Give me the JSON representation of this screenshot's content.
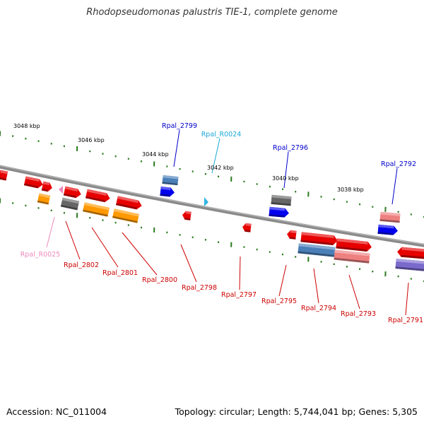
{
  "title": "Rhodopseudomonas palustris TIE-1, complete genome",
  "footer": {
    "accession": "Accession: NC_011004",
    "summary": "Topology: circular; Length: 5,744,041 bp; Genes: 5,305"
  },
  "colors": {
    "backbone": "#8a8a8a",
    "tick": "#2a7a1e",
    "cds": "#e60000",
    "cds_label": "#cc0000",
    "blue_cds": "#0000ee",
    "blue_label": "#0000cc",
    "orange": "#ff9900",
    "grey": "#666666",
    "steelblue": "#4a7fb8",
    "pink": "#ee8080",
    "purple": "#7a6acc",
    "trna_label": "#1aa8d8",
    "rrna_label": "#ee88bb"
  },
  "scale": {
    "labels": [
      "3048 kbp",
      "3046 kbp",
      "3044 kbp",
      "3042 kbp",
      "3040 kbp",
      "3038 kbp"
    ]
  },
  "genes": [
    {
      "name": "Rpal_2799",
      "color": "blue_label"
    },
    {
      "name": "Rpal_R0024",
      "color": "trna_label"
    },
    {
      "name": "Rpal_2796",
      "color": "blue_label"
    },
    {
      "name": "Rpal_2792",
      "color": "blue_label"
    },
    {
      "name": "Rpal_R0025",
      "color": "rrna_label"
    },
    {
      "name": "Rpal_2802",
      "color": "cds_label"
    },
    {
      "name": "Rpal_2801",
      "color": "cds_label"
    },
    {
      "name": "Rpal_2800",
      "color": "cds_label"
    },
    {
      "name": "Rpal_2798",
      "color": "cds_label"
    },
    {
      "name": "Rpal_2797",
      "color": "cds_label"
    },
    {
      "name": "Rpal_2795",
      "color": "cds_label"
    },
    {
      "name": "Rpal_2794",
      "color": "cds_label"
    },
    {
      "name": "Rpal_2793",
      "color": "cds_label"
    },
    {
      "name": "Rpal_2791",
      "color": "cds_label"
    }
  ]
}
